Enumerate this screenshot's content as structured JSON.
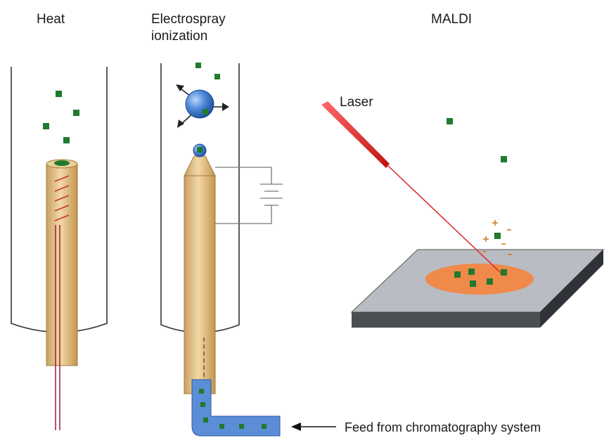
{
  "labels": {
    "heat": "Heat",
    "electrospray_line1": "Electrospray",
    "electrospray_line2": "ionization",
    "maldi": "MALDI",
    "laser": "Laser",
    "feed": "Feed from chromatography system"
  },
  "colors": {
    "needle": "#e4c086",
    "needle_stroke": "#a07a3c",
    "heater_coil": "#c0392b",
    "wire": "#a01838",
    "ion": "#1f7a2e",
    "droplet": "#3c7fd1",
    "tube": "#5b8ed6",
    "plate_top": "#b9bcc2",
    "plate_side": "#4a4d52",
    "matrix_spot": "#f08a4b",
    "laser_beam": "#e02424",
    "charge": "#d07a20"
  }
}
